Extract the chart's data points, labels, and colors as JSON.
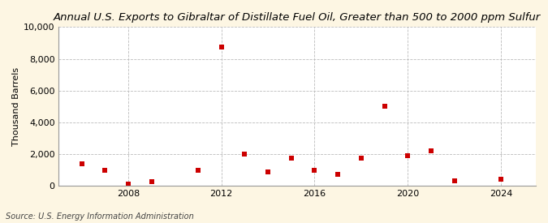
{
  "title": "Annual U.S. Exports to Gibraltar of Distillate Fuel Oil, Greater than 500 to 2000 ppm Sulfur",
  "ylabel": "Thousand Barrels",
  "source": "Source: U.S. Energy Information Administration",
  "years": [
    2006,
    2007,
    2008,
    2009,
    2011,
    2012,
    2013,
    2014,
    2015,
    2016,
    2017,
    2018,
    2019,
    2020,
    2021,
    2022,
    2024
  ],
  "values": [
    1400,
    1000,
    100,
    250,
    1000,
    8750,
    2000,
    900,
    1750,
    1000,
    750,
    1750,
    5000,
    1900,
    2200,
    300,
    400
  ],
  "marker_color": "#cc0000",
  "marker_size": 4,
  "background_color": "#fdf6e3",
  "plot_bg_color": "#ffffff",
  "grid_color": "#bbbbbb",
  "spine_color": "#999999",
  "xlim": [
    2005.0,
    2025.5
  ],
  "ylim": [
    0,
    10000
  ],
  "yticks": [
    0,
    2000,
    4000,
    6000,
    8000,
    10000
  ],
  "xticks": [
    2008,
    2012,
    2016,
    2020,
    2024
  ],
  "title_fontsize": 9.5,
  "label_fontsize": 8,
  "tick_fontsize": 8,
  "source_fontsize": 7
}
